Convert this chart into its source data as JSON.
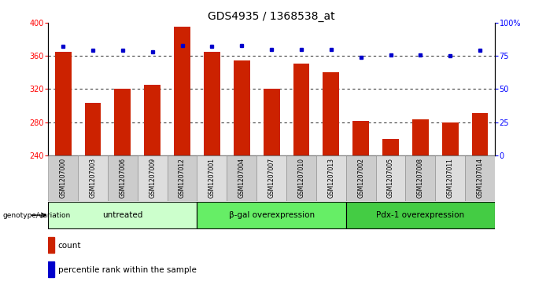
{
  "title": "GDS4935 / 1368538_at",
  "categories": [
    "GSM1207000",
    "GSM1207003",
    "GSM1207006",
    "GSM1207009",
    "GSM1207012",
    "GSM1207001",
    "GSM1207004",
    "GSM1207007",
    "GSM1207010",
    "GSM1207013",
    "GSM1207002",
    "GSM1207005",
    "GSM1207008",
    "GSM1207011",
    "GSM1207014"
  ],
  "counts": [
    365,
    303,
    320,
    325,
    395,
    365,
    355,
    320,
    351,
    340,
    282,
    260,
    283,
    280,
    291
  ],
  "percentiles": [
    82,
    79,
    79,
    78,
    83,
    82,
    83,
    80,
    80,
    80,
    74,
    76,
    76,
    75,
    79
  ],
  "bar_color": "#cc2200",
  "dot_color": "#0000cc",
  "ymin": 240,
  "ymax": 400,
  "y2min": 0,
  "y2max": 100,
  "yticks": [
    240,
    280,
    320,
    360,
    400
  ],
  "y2ticks": [
    0,
    25,
    50,
    75,
    100
  ],
  "grid_values": [
    280,
    320,
    360
  ],
  "groups": [
    {
      "label": "untreated",
      "start": 0,
      "end": 5,
      "color": "#ccffcc"
    },
    {
      "label": "β-gal overexpression",
      "start": 5,
      "end": 10,
      "color": "#66ee66"
    },
    {
      "label": "Pdx-1 overexpression",
      "start": 10,
      "end": 15,
      "color": "#44cc44"
    }
  ],
  "legend_label_count": "count",
  "legend_label_percentile": "percentile rank within the sample",
  "genotype_label": "genotype/variation",
  "bar_width": 0.55,
  "figwidth": 6.8,
  "figheight": 3.63,
  "dpi": 100,
  "title_fontsize": 10,
  "axis_tick_fontsize": 7,
  "group_label_fontsize": 7.5,
  "cat_fontsize": 5.5
}
